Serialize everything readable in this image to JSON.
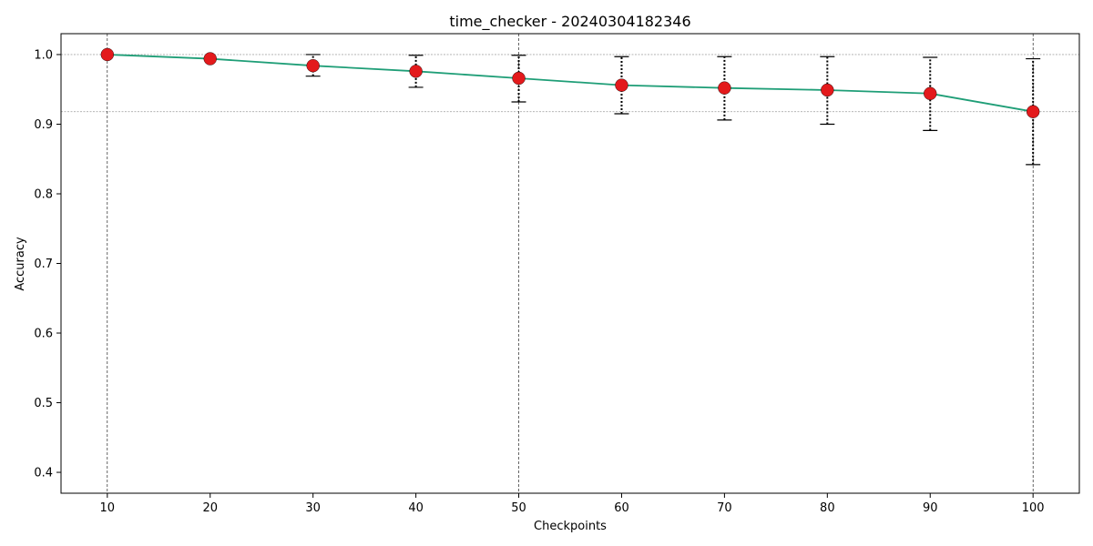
{
  "chart_data": {
    "type": "line",
    "title": "time_checker - 20240304182346",
    "xlabel": "Checkpoints",
    "ylabel": "Accuracy",
    "xlim": [
      5.5,
      104.5
    ],
    "ylim": [
      0.37,
      1.03
    ],
    "x_ticks": [
      10,
      20,
      30,
      40,
      50,
      60,
      70,
      80,
      90,
      100
    ],
    "y_ticks": [
      0.4,
      0.5,
      0.6,
      0.7,
      0.8,
      0.9,
      1.0
    ],
    "y_tick_labels": [
      "0.4",
      "0.5",
      "0.6",
      "0.7",
      "0.8",
      "0.9",
      "1.0"
    ],
    "grid": false,
    "series": [
      {
        "name": "",
        "color": "#1f9e77",
        "marker_color": "#e31a1c",
        "x": [
          10,
          20,
          30,
          40,
          50,
          60,
          70,
          80,
          90,
          100
        ],
        "y": [
          1.0,
          0.994,
          0.984,
          0.976,
          0.966,
          0.956,
          0.952,
          0.949,
          0.944,
          0.918
        ],
        "err_low": [
          1.0,
          0.994,
          0.969,
          0.953,
          0.932,
          0.915,
          0.906,
          0.9,
          0.891,
          0.842
        ],
        "err_high": [
          1.0,
          0.994,
          1.0,
          0.999,
          0.999,
          0.997,
          0.997,
          0.997,
          0.996,
          0.994
        ]
      }
    ],
    "reference_hlines": [
      1.0,
      0.918
    ],
    "reference_vlines": [
      10,
      50,
      100
    ]
  }
}
